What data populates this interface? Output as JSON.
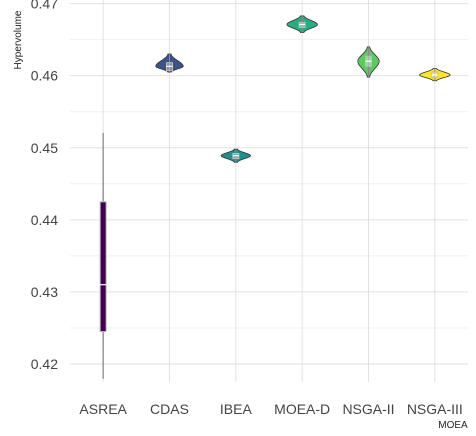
{
  "chart_data": {
    "type": "violin",
    "xlabel": "MOEA",
    "ylabel": "Hypervolume",
    "ylim": [
      0.4175,
      0.4705
    ],
    "yticks": [
      0.42,
      0.43,
      0.44,
      0.45,
      0.46,
      0.47
    ],
    "ytick_labels": [
      "0.42",
      "0.43",
      "0.44",
      "0.45",
      "0.46",
      "0.47"
    ],
    "grid": true,
    "legend": "none",
    "categories": [
      "ASREA",
      "CDAS",
      "IBEA",
      "MOEA-D",
      "NSGA-II",
      "NSGA-III"
    ],
    "series": [
      {
        "category": "ASREA",
        "color": "#440154",
        "min": 0.418,
        "q1": 0.4245,
        "median": 0.431,
        "q3": 0.4425,
        "max": 0.452,
        "max_width": 0.004
      },
      {
        "category": "CDAS",
        "color": "#3b528b",
        "min": 0.4605,
        "q1": 0.4607,
        "median": 0.4613,
        "q3": 0.4618,
        "max": 0.463,
        "max_width": 0.45
      },
      {
        "category": "IBEA",
        "color": "#21908c",
        "min": 0.448,
        "q1": 0.4485,
        "median": 0.4489,
        "q3": 0.4492,
        "max": 0.4498,
        "max_width": 0.48
      },
      {
        "category": "MOEA-D",
        "color": "#27ad81",
        "min": 0.466,
        "q1": 0.4667,
        "median": 0.4671,
        "q3": 0.4674,
        "max": 0.4683,
        "max_width": 0.5
      },
      {
        "category": "NSGA-II",
        "color": "#5ec962",
        "min": 0.4598,
        "q1": 0.4613,
        "median": 0.462,
        "q3": 0.4627,
        "max": 0.464,
        "max_width": 0.35
      },
      {
        "category": "NSGA-III",
        "color": "#fde725",
        "min": 0.4593,
        "q1": 0.4598,
        "median": 0.4601,
        "q3": 0.4605,
        "max": 0.461,
        "max_width": 0.5
      }
    ]
  }
}
